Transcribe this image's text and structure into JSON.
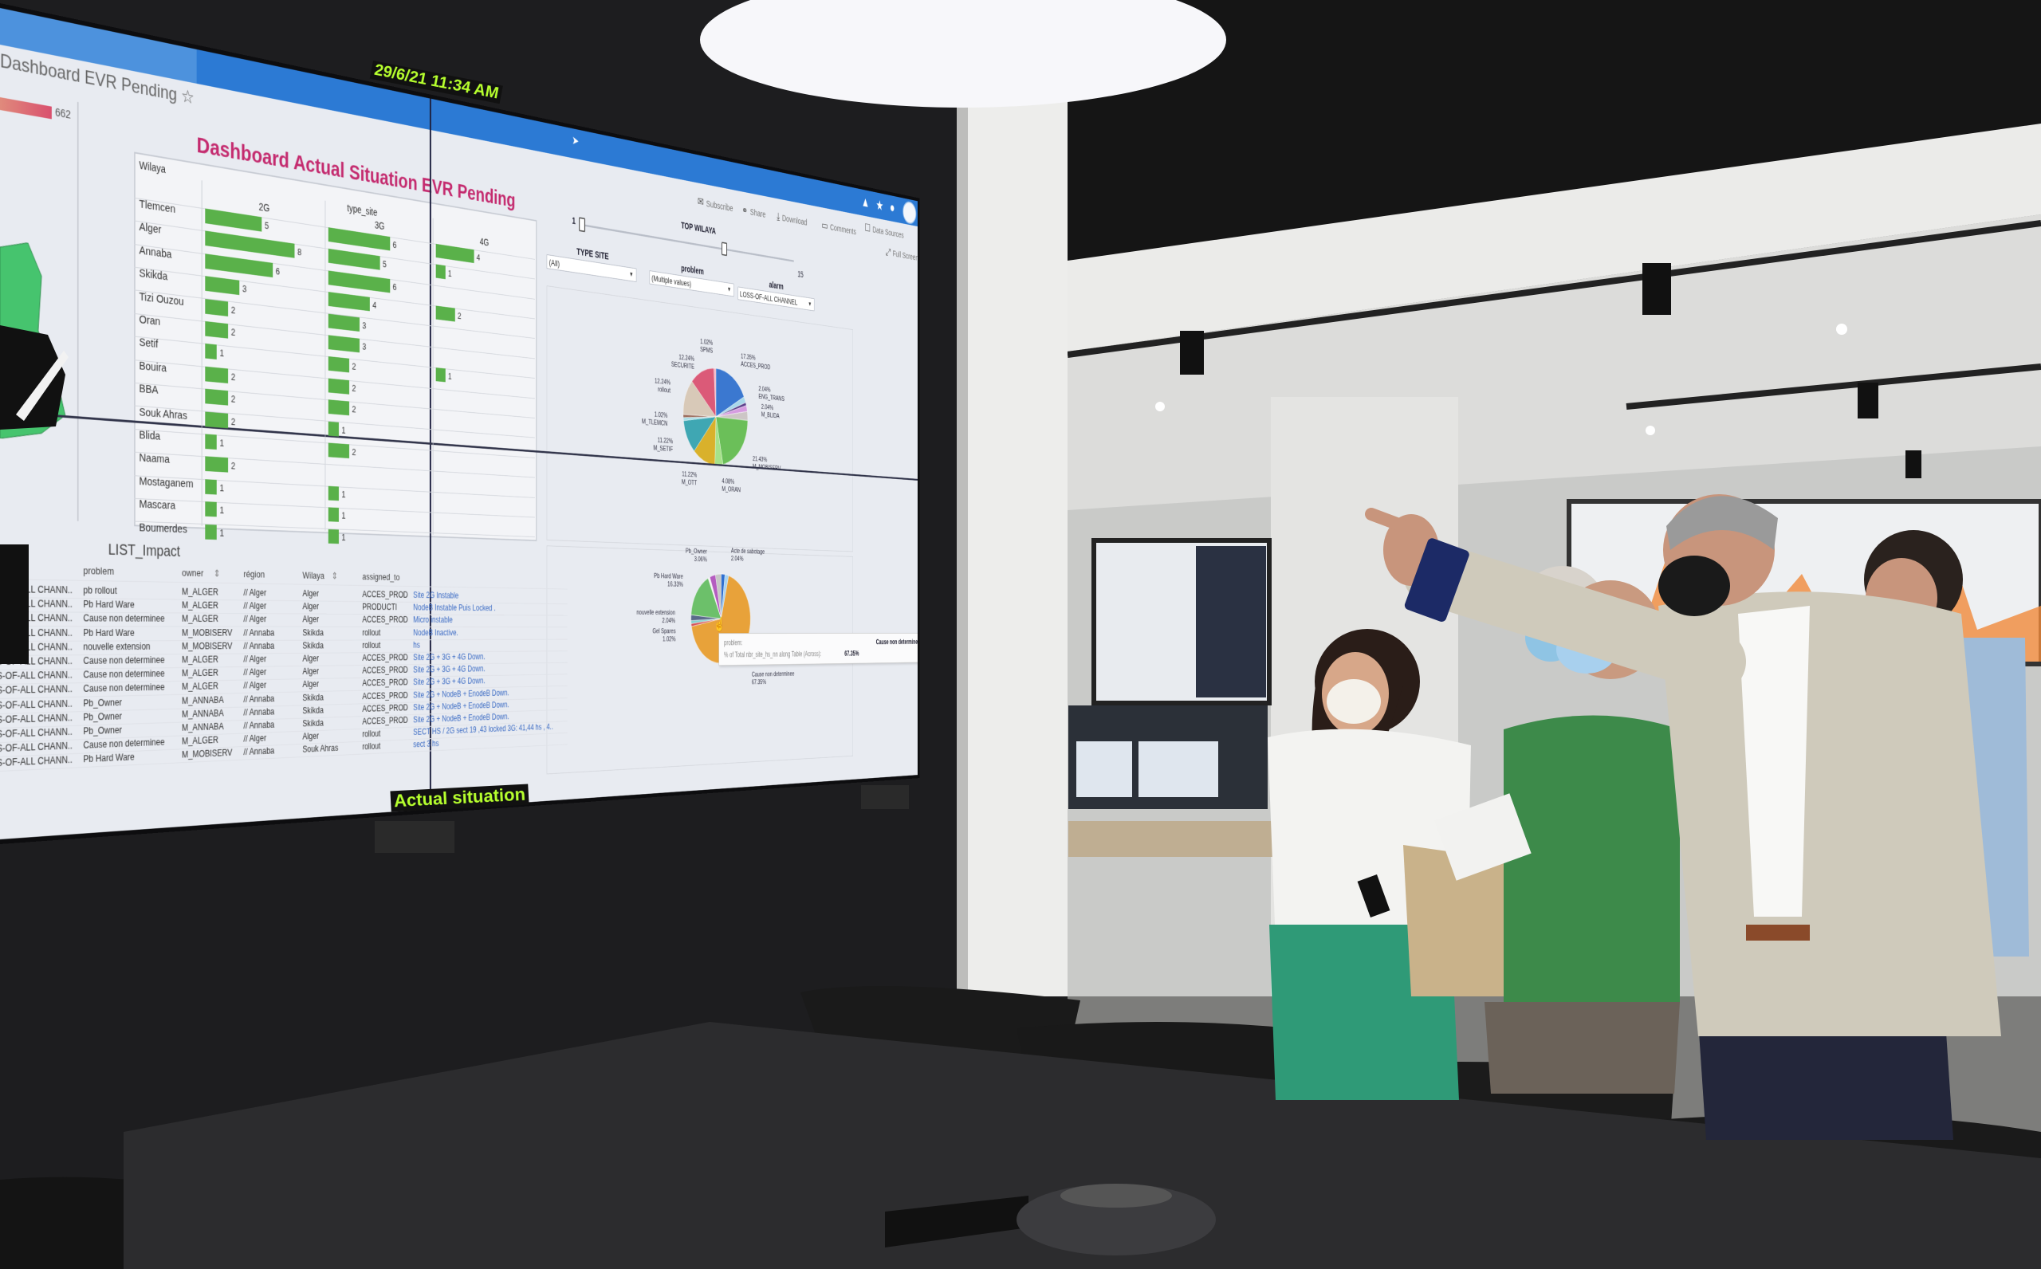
{
  "screen": {
    "tab_title": "Dashboard EVR Pending",
    "clock": "29/6/21 11:34 AM",
    "footer_label": "Actual situation",
    "topbar_icons": [
      "warning-icon",
      "star-icon",
      "info-icon",
      "user-avatar"
    ],
    "toolbar": [
      {
        "label": "Subscribe",
        "icon": "subscribe-icon"
      },
      {
        "label": "Share",
        "icon": "share-icon"
      },
      {
        "label": "Download",
        "icon": "download-icon"
      },
      {
        "label": "Comments",
        "icon": "comments-icon"
      },
      {
        "label": "Data Sources",
        "icon": "data-sources-icon"
      },
      {
        "label": "Full Screen",
        "icon": "full-screen-icon"
      }
    ],
    "total_bar_value": "662",
    "title": "Dashboard Actual Situation EVR Pending",
    "filters": {
      "top_wilaya": {
        "label": "TOP WILAYA",
        "min": "1",
        "max": "15",
        "range": [
          1,
          10
        ]
      },
      "type_site": {
        "label": "TYPE SITE",
        "value": "(All)"
      },
      "problem": {
        "label": "problem",
        "value": "(Multiple values)"
      },
      "alarm": {
        "label": "alarm",
        "value": "LOSS-OF-ALL CHANNEL"
      }
    },
    "tooltip": {
      "field_label": "problem:",
      "field_value": "Cause non determinee",
      "measure_label": "% of Total nbr_site_hs_nn along Table (Across):",
      "measure_value": "67.35%"
    }
  },
  "list_impact": {
    "title": "LIST_Impact",
    "columns": [
      "problem",
      "owner",
      "région",
      "Wilaya",
      "assigned_to"
    ],
    "rows": [
      {
        "alarm": "LOSS-OF-ALL CHANN..",
        "problem": "pb rollout",
        "owner": "M_ALGER",
        "region": "// Alger",
        "wilaya": "Alger",
        "assigned_to": "ACCES_PROD",
        "description": "Site 2G Instable"
      },
      {
        "alarm": "LOSS-OF-ALL CHANN..",
        "problem": "Pb Hard Ware",
        "owner": "M_ALGER",
        "region": "// Alger",
        "wilaya": "Alger",
        "assigned_to": "PRODUCTI",
        "description": "NodeB Instable Puis Locked ."
      },
      {
        "alarm": "LOSS-OF-ALL CHANN..",
        "problem": "Cause non determinee",
        "owner": "M_ALGER",
        "region": "// Alger",
        "wilaya": "Alger",
        "assigned_to": "ACCES_PROD",
        "description": "Micro instable"
      },
      {
        "alarm": "LOSS-OF-ALL CHANN..",
        "problem": "Pb Hard Ware",
        "owner": "M_MOBISERV",
        "region": "// Annaba",
        "wilaya": "Skikda",
        "assigned_to": "rollout",
        "description": "NodeB Inactive."
      },
      {
        "alarm": "LOSS-OF-ALL CHANN..",
        "problem": "nouvelle extension",
        "owner": "M_MOBISERV",
        "region": "// Annaba",
        "wilaya": "Skikda",
        "assigned_to": "rollout",
        "description": "hs"
      },
      {
        "alarm": "LOSS-OF-ALL CHANN..",
        "problem": "Cause non determinee",
        "owner": "M_ALGER",
        "region": "// Alger",
        "wilaya": "Alger",
        "assigned_to": "ACCES_PROD",
        "description": "Site 2G + 3G + 4G Down."
      },
      {
        "alarm": "LOSS-OF-ALL CHANN..",
        "problem": "Cause non determinee",
        "owner": "M_ALGER",
        "region": "// Alger",
        "wilaya": "Alger",
        "assigned_to": "ACCES_PROD",
        "description": "Site 2G + 3G + 4G Down."
      },
      {
        "alarm": "LOSS-OF-ALL CHANN..",
        "problem": "Cause non determinee",
        "owner": "M_ALGER",
        "region": "// Alger",
        "wilaya": "Alger",
        "assigned_to": "ACCES_PROD",
        "description": "Site 2G + 3G + 4G Down."
      },
      {
        "alarm": "LOSS-OF-ALL CHANN..",
        "problem": "Pb_Owner",
        "owner": "M_ANNABA",
        "region": "// Annaba",
        "wilaya": "Skikda",
        "assigned_to": "ACCES_PROD",
        "description": "Site 2G + NodeB + EnodeB Down."
      },
      {
        "alarm": "LOSS-OF-ALL CHANN..",
        "problem": "Pb_Owner",
        "owner": "M_ANNABA",
        "region": "// Annaba",
        "wilaya": "Skikda",
        "assigned_to": "ACCES_PROD",
        "description": "Site 2G + NodeB + EnodeB Down."
      },
      {
        "alarm": "LOSS-OF-ALL CHANN..",
        "problem": "Pb_Owner",
        "owner": "M_ANNABA",
        "region": "// Annaba",
        "wilaya": "Skikda",
        "assigned_to": "ACCES_PROD",
        "description": "Site 2G + NodeB + EnodeB Down."
      },
      {
        "alarm": "LOSS-OF-ALL CHANN..",
        "problem": "Cause non determinee",
        "owner": "M_ALGER",
        "region": "// Alger",
        "wilaya": "Alger",
        "assigned_to": "rollout",
        "description": "SECT HS / 2G sect 19 ,43 locked 3G: 41,44 hs , 4.."
      },
      {
        "alarm": "LOSS-OF-ALL CHANN..",
        "problem": "Pb Hard Ware",
        "owner": "M_MOBISERV",
        "region": "// Annaba",
        "wilaya": "Souk Ahras",
        "assigned_to": "rollout",
        "description": "sect 3 hs"
      }
    ]
  },
  "chart_data": [
    {
      "type": "bar",
      "orientation": "horizontal",
      "row_header": "Wilaya",
      "column_header": "type_site",
      "categories": [
        "Tlemcen",
        "Alger",
        "Annaba",
        "Skikda",
        "Tizi Ouzou",
        "Oran",
        "Setif",
        "Bouira",
        "BBA",
        "Souk Ahras",
        "Blida",
        "Naama",
        "Mostaganem",
        "Mascara",
        "Boumerdes"
      ],
      "series": [
        {
          "name": "2G",
          "values": [
            5,
            8,
            6,
            3,
            2,
            2,
            1,
            2,
            2,
            2,
            1,
            2,
            1,
            1,
            1
          ]
        },
        {
          "name": "3G",
          "values": [
            6,
            5,
            6,
            4,
            3,
            3,
            2,
            2,
            2,
            1,
            2,
            null,
            1,
            1,
            1
          ]
        },
        {
          "name": "4G",
          "values": [
            4,
            1,
            null,
            2,
            null,
            null,
            1,
            null,
            null,
            null,
            null,
            null,
            null,
            null,
            null
          ]
        }
      ],
      "color": "#5ab14a"
    },
    {
      "type": "pie",
      "label_format": "percent_then_name",
      "slices": [
        {
          "label": "ACCES_PROD",
          "value": 17.35,
          "color": "#3b78d0"
        },
        {
          "label": "ENG_TRANS",
          "value": 2.04,
          "color": "#a8d8ea"
        },
        {
          "label": "",
          "value": 1.02,
          "color": "#5a3f8a"
        },
        {
          "label": "M_BLIDA",
          "value": 2.04,
          "color": "#d59ce0"
        },
        {
          "label": "",
          "value": 3.06,
          "color": "#cdc6c6"
        },
        {
          "label": "M_MOBISERV",
          "value": 21.43,
          "color": "#6bbf59"
        },
        {
          "label": "M_ORAN",
          "value": 4.08,
          "color": "#a6e28a"
        },
        {
          "label": "M_OTT",
          "value": 11.22,
          "color": "#d9b12b"
        },
        {
          "label": "M_SETIF",
          "value": 11.22,
          "color": "#3fa7b3"
        },
        {
          "label": "M_TLEMCN",
          "value": 1.02,
          "color": "#a9dde6"
        },
        {
          "label": "",
          "value": 1.02,
          "color": "#9b6c5c"
        },
        {
          "label": "rollout",
          "value": 12.24,
          "color": "#d8c9b8"
        },
        {
          "label": "SECURITE",
          "value": 12.24,
          "color": "#db5a78"
        },
        {
          "label": "SPMS",
          "value": 1.02,
          "color": "#f2b8c6"
        }
      ]
    },
    {
      "type": "pie",
      "label_format": "name_then_percent",
      "slices": [
        {
          "label": "",
          "value": 2.04,
          "color": "#2f6fd0"
        },
        {
          "label": "Acte de sabotage",
          "value": 2.04,
          "color": "#a9d3f0"
        },
        {
          "label": "Cause non determinee",
          "value": 67.35,
          "color": "#e8a23a"
        },
        {
          "label": "Gel Spares",
          "value": 1.02,
          "color": "#d6545a"
        },
        {
          "label": "",
          "value": 1.02,
          "color": "#7fd0cf"
        },
        {
          "label": "nouvelle extension",
          "value": 2.04,
          "color": "#5a6a8a"
        },
        {
          "label": "Pb Hard Ware",
          "value": 16.33,
          "color": "#6cc06a"
        },
        {
          "label": "",
          "value": 1.02,
          "color": "#f4f4f4"
        },
        {
          "label": "Pb_Owner",
          "value": 3.06,
          "color": "#b45cc0"
        },
        {
          "label": "",
          "value": 3.06,
          "color": "#c7c7c7"
        }
      ]
    }
  ]
}
